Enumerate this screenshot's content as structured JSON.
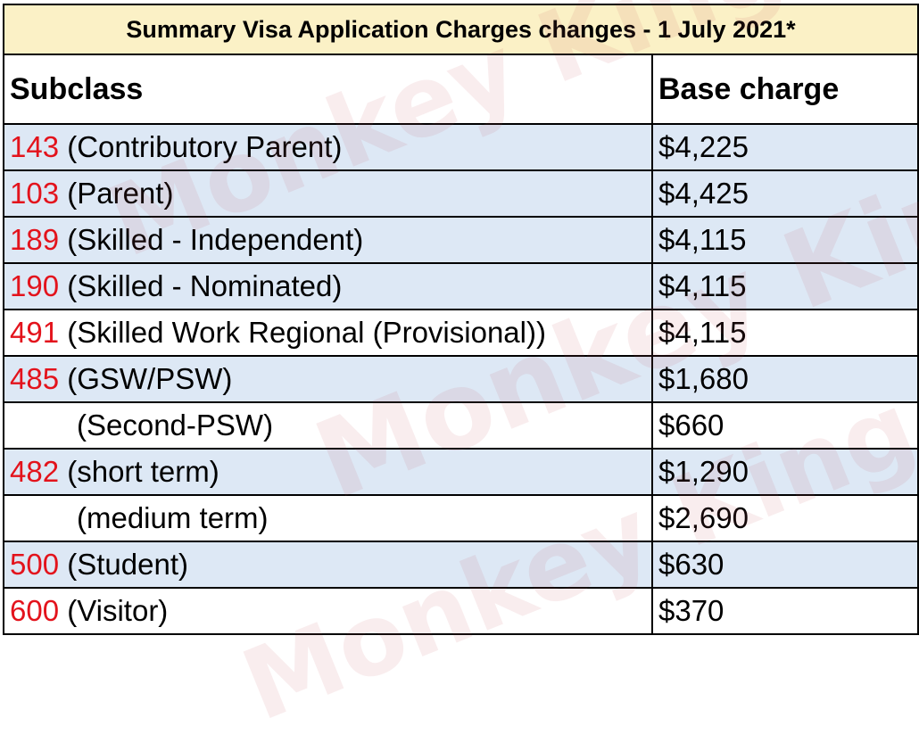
{
  "title": "Summary Visa Application Charges changes - 1 July 2021*",
  "headers": {
    "subclass": "Subclass",
    "charge": "Base charge"
  },
  "rows": [
    {
      "code": "143",
      "name": "(Contributory Parent)",
      "charge": "$4,225"
    },
    {
      "code": "103",
      "name": "(Parent)",
      "charge": "$4,425"
    },
    {
      "code": "189",
      "name": "(Skilled - Independent)",
      "charge": "$4,115"
    },
    {
      "code": "190",
      "name": "(Skilled - Nominated)",
      "charge": "$4,115"
    },
    {
      "code": "491",
      "name": "(Skilled Work Regional (Provisional))",
      "charge": "$4,115"
    },
    {
      "code": "485",
      "name": "(GSW/PSW)",
      "charge": "$1,680"
    },
    {
      "code": "",
      "name": "(Second-PSW)",
      "charge": "$660"
    },
    {
      "code": "482",
      "name": "(short term)",
      "charge": "$1,290"
    },
    {
      "code": "",
      "name": "(medium term)",
      "charge": "$2,690"
    },
    {
      "code": "500",
      "name": "(Student)",
      "charge": "$630"
    },
    {
      "code": "600",
      "name": "(Visitor)",
      "charge": "$370"
    }
  ],
  "watermark": {
    "text": "Monkey King"
  }
}
